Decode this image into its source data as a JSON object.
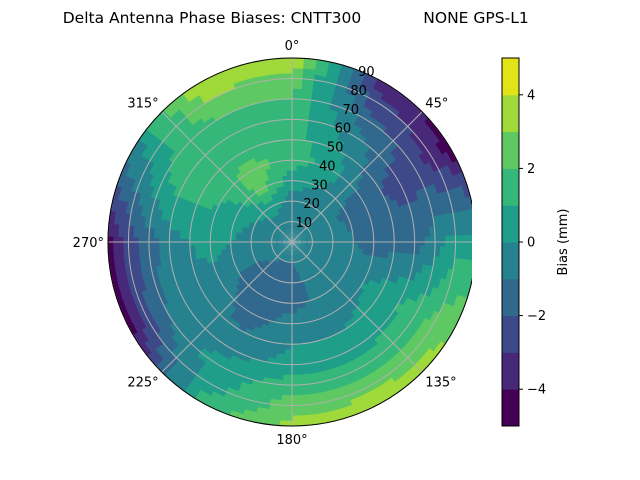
{
  "chart_data": {
    "type": "heatmap",
    "projection": "polar",
    "title_left": "Delta Antenna Phase Biases: CNTT300",
    "title_right": "NONE GPS-L1",
    "azimuth_ticks": [
      "0°",
      "45°",
      "90°",
      "135°",
      "180°",
      "225°",
      "270°",
      "315°"
    ],
    "radial_ticks": [
      "10",
      "20",
      "30",
      "40",
      "50",
      "60",
      "70",
      "80",
      "90"
    ],
    "radial_range": [
      0,
      90
    ],
    "grid": true,
    "colorbar": {
      "label": "Bias (mm)",
      "range": [
        -5,
        5
      ],
      "levels": [
        -5,
        -4,
        -3,
        -2,
        -1,
        0,
        1,
        2,
        3,
        4,
        5
      ],
      "ticks": [
        "−4",
        "−2",
        "0",
        "2",
        "4"
      ],
      "tick_values": [
        -4,
        -2,
        0,
        2,
        4
      ],
      "colors": [
        "#440154",
        "#482878",
        "#3e4989",
        "#31688e",
        "#26828e",
        "#1f9e89",
        "#35b779",
        "#5ec962",
        "#9fda3a",
        "#e2e418"
      ]
    },
    "azimuth_deg": [
      0,
      30,
      60,
      90,
      120,
      150,
      180,
      210,
      240,
      270,
      300,
      330
    ],
    "zenith_deg": [
      0,
      10,
      20,
      30,
      40,
      50,
      60,
      70,
      80,
      90
    ],
    "bias_mm": [
      [
        -0.5,
        -0.5,
        -0.5,
        0.5,
        1.5,
        1.5,
        1.5,
        2,
        2.5,
        4
      ],
      [
        -0.5,
        -0.5,
        -0.5,
        0,
        0.5,
        0,
        -0.5,
        -1.5,
        -2.5,
        -3.5
      ],
      [
        -0.5,
        -0.5,
        -0.8,
        -1.2,
        -1.5,
        -2,
        -2.5,
        -2.5,
        -3.5,
        -4.5
      ],
      [
        -0.5,
        -0.5,
        -0.5,
        -1,
        -1.5,
        -1.5,
        -1.5,
        -0.5,
        0.5,
        0.5
      ],
      [
        -0.5,
        -0.5,
        -0.5,
        -0.5,
        0,
        0.5,
        1,
        1.5,
        2.5,
        3
      ],
      [
        -0.5,
        -0.5,
        -0.5,
        -0.5,
        -0.5,
        0,
        0.5,
        1.5,
        2.5,
        4
      ],
      [
        -0.5,
        -1,
        -1.5,
        -1.5,
        -0.5,
        0,
        0.5,
        1.5,
        2.5,
        3.5
      ],
      [
        -0.5,
        -1,
        -1.5,
        -1.5,
        -1.5,
        -1,
        -0.5,
        0.5,
        0.5,
        1.5
      ],
      [
        -0.5,
        -0.8,
        -1,
        -1,
        -0.5,
        -0.5,
        -0.5,
        -1,
        -2.5,
        -4.5
      ],
      [
        -0.5,
        -0.5,
        -0.5,
        0,
        0.5,
        0,
        -0.5,
        -1.5,
        -2.5,
        -4.5
      ],
      [
        -0.5,
        -0.5,
        0,
        0.5,
        1,
        1.5,
        1.5,
        1,
        0,
        -0.5
      ],
      [
        -0.5,
        -0.5,
        0.5,
        2.5,
        2.5,
        1.5,
        1.5,
        2,
        3,
        4
      ]
    ]
  }
}
